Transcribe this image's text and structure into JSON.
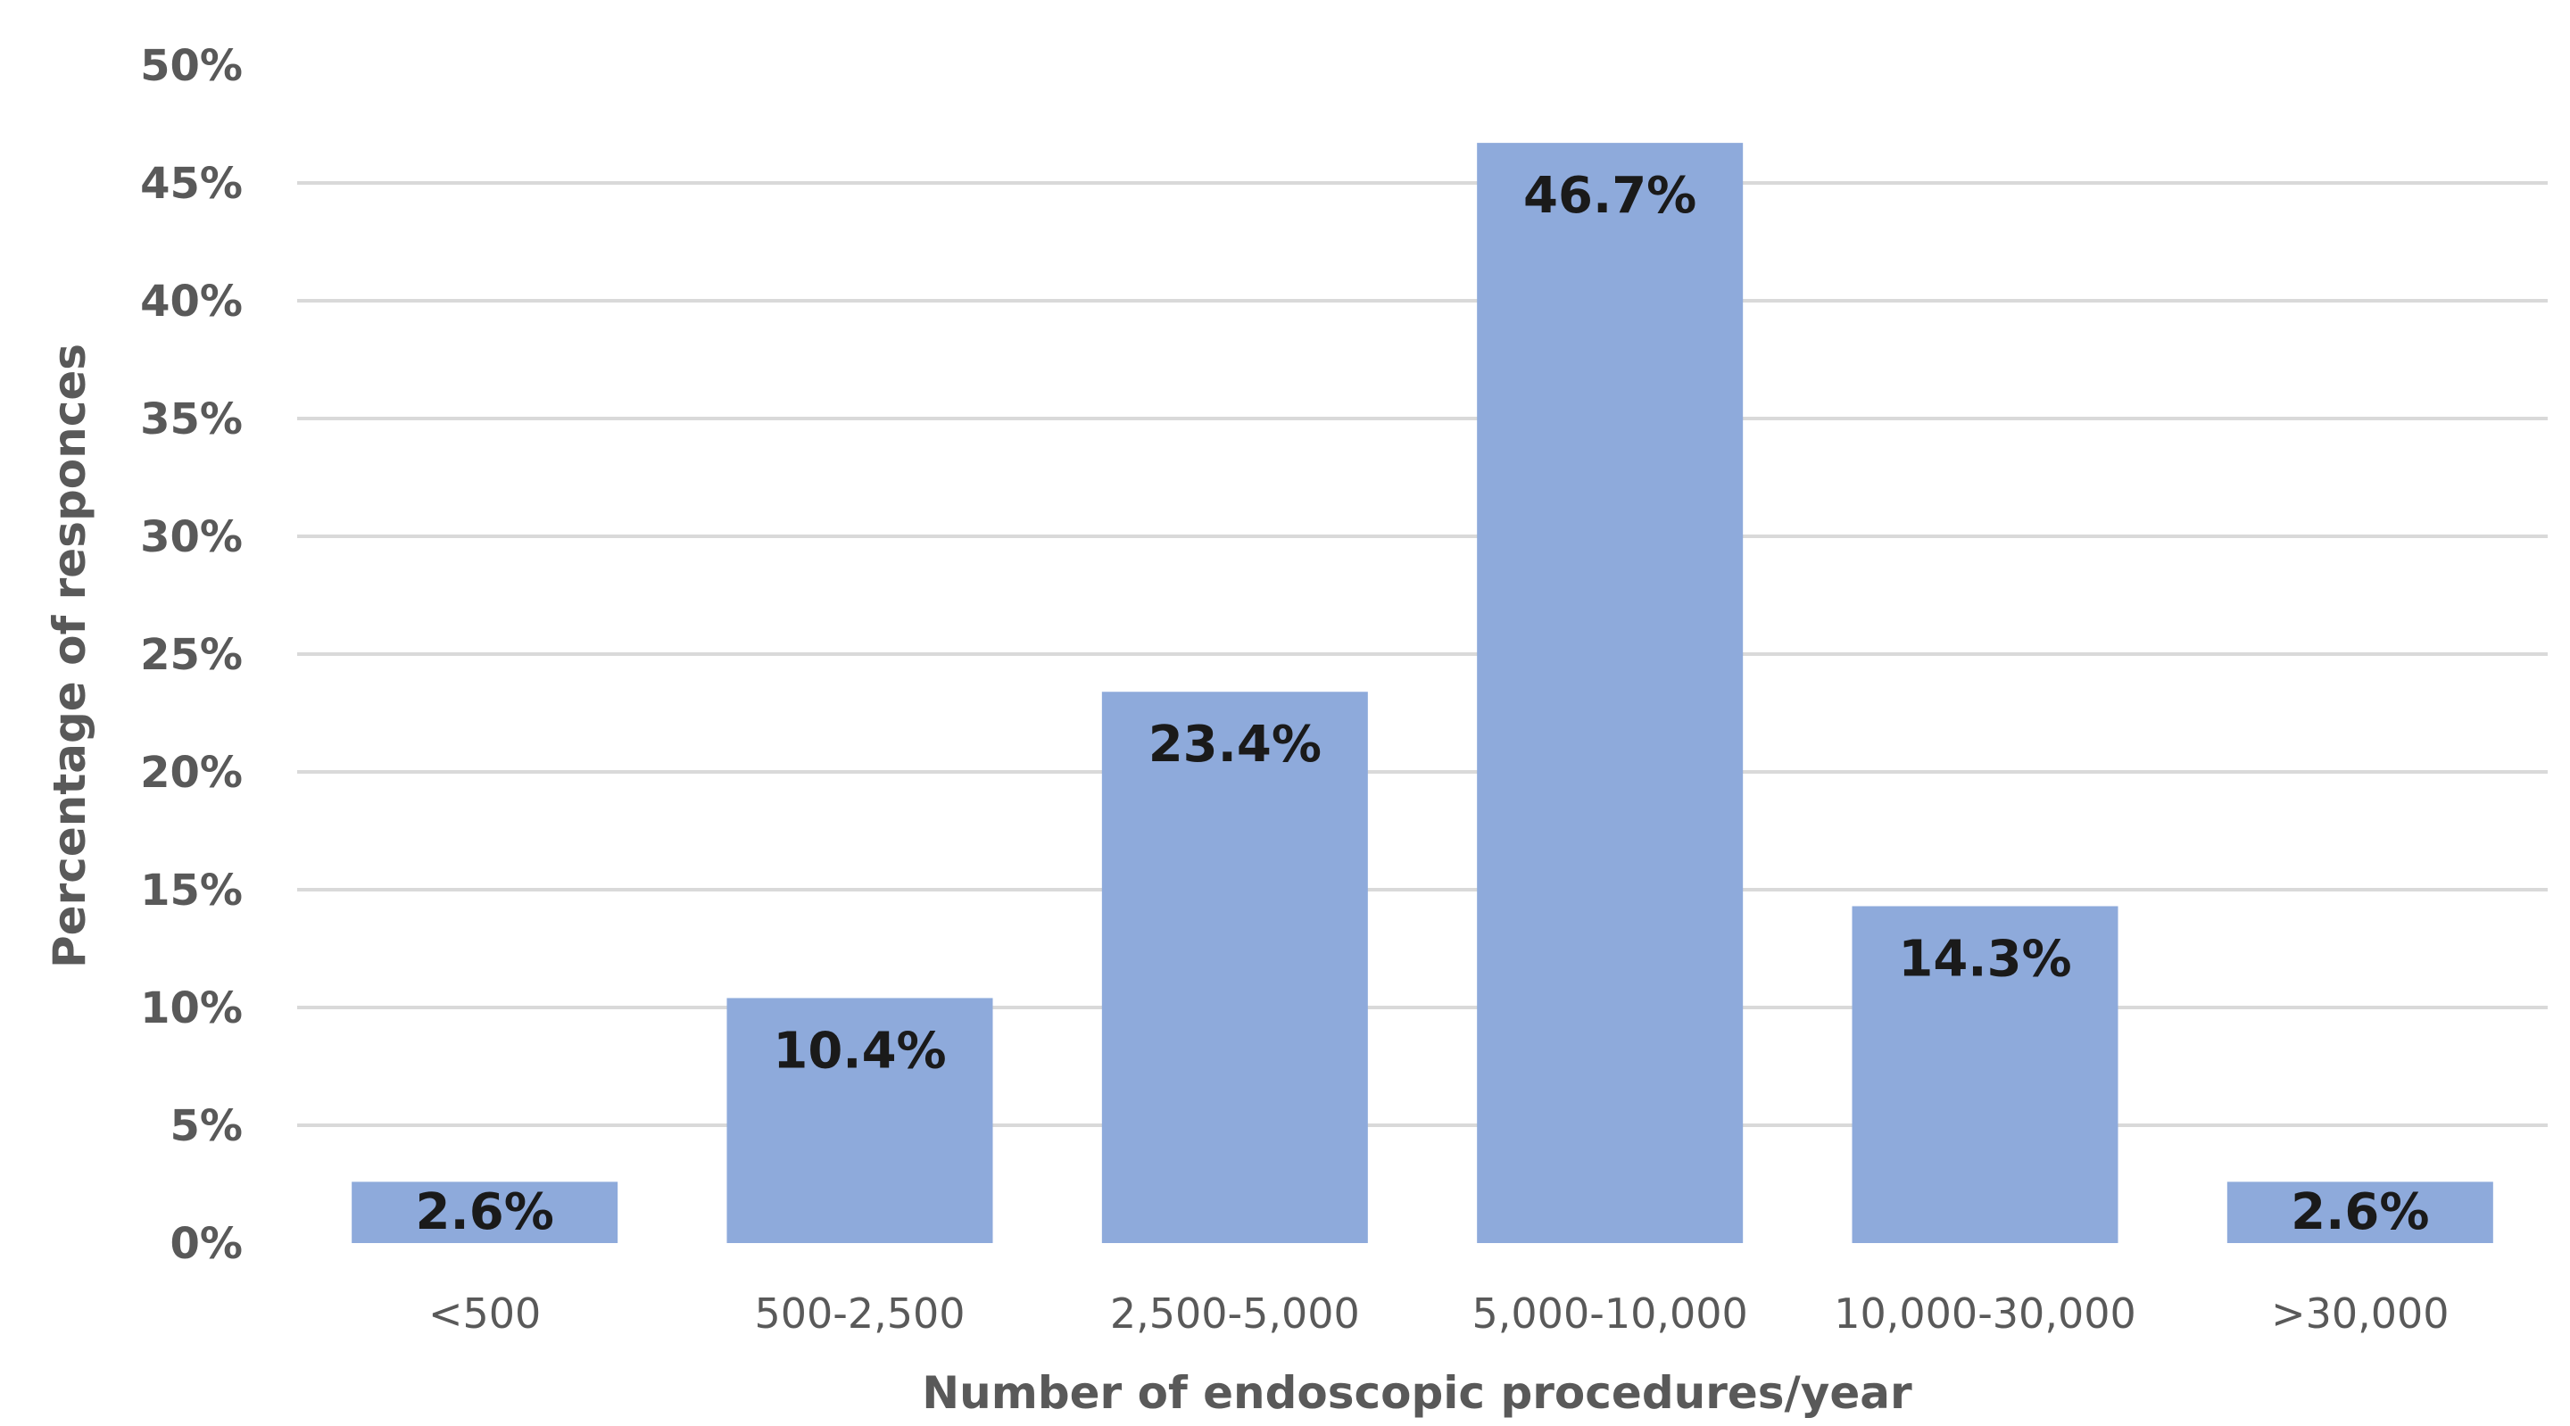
{
  "chart_data": {
    "type": "bar",
    "categories": [
      "<500",
      "500-2,500",
      "2,500-5,000",
      "5,000-10,000",
      "10,000-30,000",
      ">30,000"
    ],
    "values": [
      2.6,
      10.4,
      23.4,
      46.7,
      14.3,
      2.6
    ],
    "data_labels": [
      "2.6%",
      "10.4%",
      "23.4%",
      "46.7%",
      "14.3%",
      "2.6%"
    ],
    "xlabel": "Number of endoscopic procedures/year",
    "ylabel": "Percentage of responces",
    "ylim": [
      0,
      50
    ],
    "y_ticks": [
      0,
      5,
      10,
      15,
      20,
      25,
      30,
      35,
      40,
      45,
      50
    ],
    "y_tick_labels": [
      "0%",
      "5%",
      "10%",
      "15%",
      "20%",
      "25%",
      "30%",
      "35%",
      "40%",
      "45%",
      "50%"
    ],
    "grid": true,
    "bar_color": "#8eaadb"
  }
}
